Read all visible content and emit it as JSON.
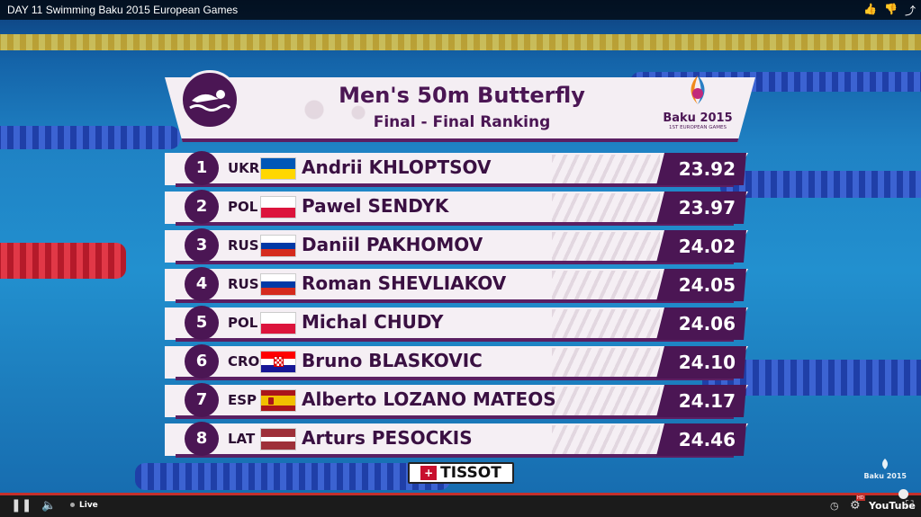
{
  "window": {
    "title": "DAY 11 Swimming Baku 2015 European Games"
  },
  "top_icons": [
    "thumbs-up-icon",
    "thumbs-down-icon",
    "share-icon"
  ],
  "board": {
    "title": "Men's 50m Butterfly",
    "subtitle": "Final - Final Ranking",
    "logo_name": "Baku 2015",
    "logo_sub": "1ST EUROPEAN GAMES",
    "sponsor": "TISSOT"
  },
  "results": [
    {
      "pos": "1",
      "country": "UKR",
      "name": "Andrii KHLOPTSOV",
      "time": "23.92"
    },
    {
      "pos": "2",
      "country": "POL",
      "name": "Pawel SENDYK",
      "time": "23.97"
    },
    {
      "pos": "3",
      "country": "RUS",
      "name": "Daniil PAKHOMOV",
      "time": "24.02"
    },
    {
      "pos": "4",
      "country": "RUS",
      "name": "Roman SHEVLIAKOV",
      "time": "24.05"
    },
    {
      "pos": "5",
      "country": "POL",
      "name": "Michal CHUDY",
      "time": "24.06"
    },
    {
      "pos": "6",
      "country": "CRO",
      "name": "Bruno BLASKOVIC",
      "time": "24.10"
    },
    {
      "pos": "7",
      "country": "ESP",
      "name": "Alberto LOZANO MATEOS",
      "time": "24.17"
    },
    {
      "pos": "8",
      "country": "LAT",
      "name": "Arturs PESOCKIS",
      "time": "24.46"
    }
  ],
  "watermark": {
    "name": "Baku 2015"
  },
  "player": {
    "live_label": "Live",
    "brand": "YouTube",
    "hd_badge": "HD"
  },
  "colors": {
    "accent": "#4b1654",
    "panel": "#f5eff4",
    "progress": "#c4302b"
  }
}
